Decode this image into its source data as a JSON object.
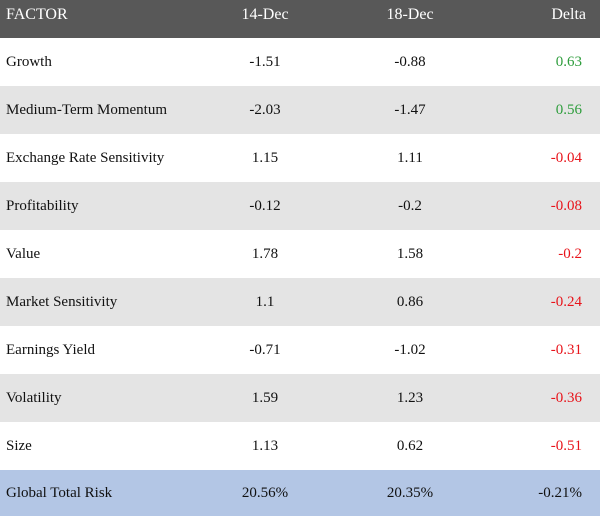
{
  "colors": {
    "header_bg": "#585858",
    "header_text": "#ffffff",
    "row_alt_bg": "#e4e4e4",
    "total_bg": "#b3c6e5",
    "positive": "#2e9d3c",
    "negative": "#e8141b"
  },
  "chart_data": {
    "type": "table",
    "columns": [
      "FACTOR",
      "14-Dec",
      "18-Dec",
      "Delta"
    ],
    "rows": [
      {
        "factor": "Growth",
        "d1": "-1.51",
        "d2": "-0.88",
        "delta": "0.63",
        "sign": "pos"
      },
      {
        "factor": "Medium-Term Momentum",
        "d1": "-2.03",
        "d2": "-1.47",
        "delta": "0.56",
        "sign": "pos"
      },
      {
        "factor": "Exchange Rate Sensitivity",
        "d1": "1.15",
        "d2": "1.11",
        "delta": "-0.04",
        "sign": "neg"
      },
      {
        "factor": "Profitability",
        "d1": "-0.12",
        "d2": "-0.2",
        "delta": "-0.08",
        "sign": "neg"
      },
      {
        "factor": "Value",
        "d1": "1.78",
        "d2": "1.58",
        "delta": "-0.2",
        "sign": "neg"
      },
      {
        "factor": "Market Sensitivity",
        "d1": "1.1",
        "d2": "0.86",
        "delta": "-0.24",
        "sign": "neg"
      },
      {
        "factor": "Earnings Yield",
        "d1": "-0.71",
        "d2": "-1.02",
        "delta": "-0.31",
        "sign": "neg"
      },
      {
        "factor": "Volatility",
        "d1": "1.59",
        "d2": "1.23",
        "delta": "-0.36",
        "sign": "neg"
      },
      {
        "factor": "Size",
        "d1": "1.13",
        "d2": "0.62",
        "delta": "-0.51",
        "sign": "neg"
      }
    ],
    "total": {
      "factor": "Global Total Risk",
      "d1": "20.56%",
      "d2": "20.35%",
      "delta": "-0.21%"
    }
  }
}
